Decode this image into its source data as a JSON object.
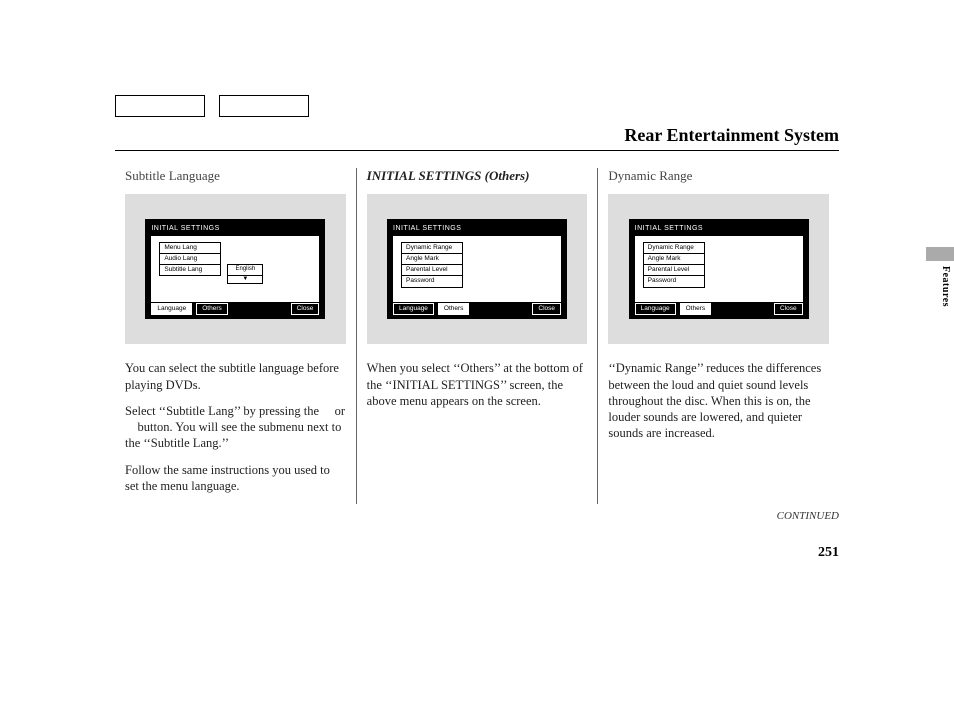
{
  "header": {
    "title": "Rear Entertainment System"
  },
  "sideTab": {
    "label": "Features"
  },
  "columns": [
    {
      "heading": "Subtitle Language",
      "headingItalic": false,
      "screen": {
        "title": "INITIAL SETTINGS",
        "items": [
          "Menu Lang",
          "Audio Lang",
          "Subtitle Lang"
        ],
        "submenu": {
          "label": "English",
          "arrow": "▼"
        },
        "tabs": {
          "left": "Language",
          "right": "Others",
          "selected": "left",
          "close": "Close"
        }
      },
      "paragraphs": [
        "You can select the subtitle language before playing DVDs.",
        "Select ‘‘Subtitle Lang’’ by pressing the     or     button. You will see the submenu next to the ‘‘Subtitle Lang.’’",
        "Follow the same instructions you used to set the menu language."
      ]
    },
    {
      "heading": "INITIAL SETTINGS (Others)",
      "headingItalic": true,
      "screen": {
        "title": "INITIAL SETTINGS",
        "items": [
          "Dynamic Range",
          "Angle Mark",
          "Parental Level",
          "Password"
        ],
        "submenu": null,
        "tabs": {
          "left": "Language",
          "right": "Others",
          "selected": "right",
          "close": "Close"
        }
      },
      "paragraphs": [
        "When you select ‘‘Others’’ at the bottom of the ‘‘INITIAL SETTINGS’’ screen, the above menu appears on the screen."
      ]
    },
    {
      "heading": "Dynamic Range",
      "headingItalic": false,
      "screen": {
        "title": "INITIAL SETTINGS",
        "items": [
          "Dynamic Range",
          "Angle Mark",
          "Parental Level",
          "Password"
        ],
        "submenu": null,
        "tabs": {
          "left": "Language",
          "right": "Others",
          "selected": "right",
          "close": "Close"
        }
      },
      "paragraphs": [
        "‘‘Dynamic Range’’ reduces the differences between the loud and quiet sound levels throughout the disc. When this is on, the louder sounds are lowered, and quieter sounds are increased."
      ]
    }
  ],
  "footer": {
    "continued": "CONTINUED",
    "pageNumber": "251"
  }
}
